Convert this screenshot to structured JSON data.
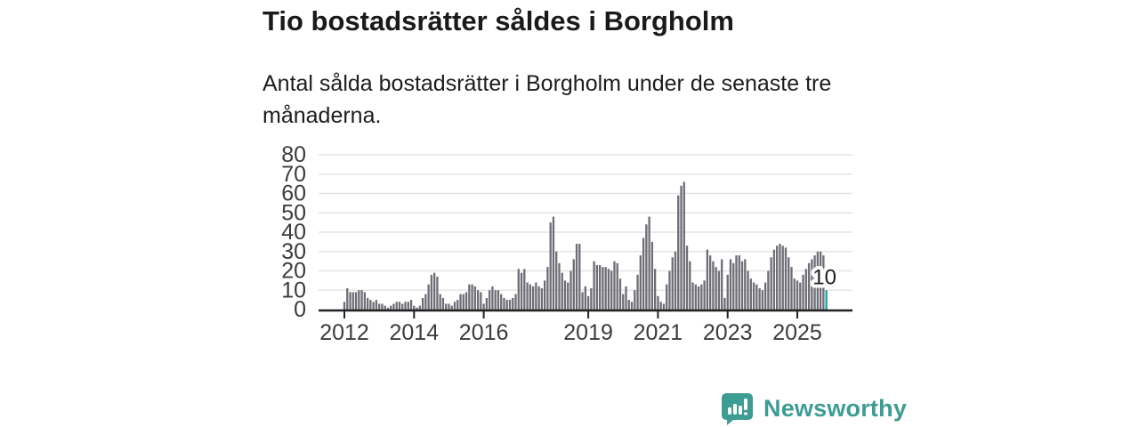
{
  "header": {
    "title": "Tio bostadsrätter såldes i Borgholm",
    "subtitle": "Antal sålda bostadsrätter i Borgholm under de senaste tre månaderna."
  },
  "chart_data": {
    "type": "bar",
    "title": "Tio bostadsrätter såldes i Borgholm",
    "x_start": "2012-01",
    "x_end": "2025-11",
    "x_unit": "month",
    "ylim": [
      0,
      80
    ],
    "grid": true,
    "yticks": [
      0,
      10,
      20,
      30,
      40,
      50,
      60,
      70,
      80
    ],
    "xticks": [
      {
        "label": "2012",
        "month_index": 0
      },
      {
        "label": "2014",
        "month_index": 24
      },
      {
        "label": "2016",
        "month_index": 48
      },
      {
        "label": "2019",
        "month_index": 84
      },
      {
        "label": "2021",
        "month_index": 108
      },
      {
        "label": "2023",
        "month_index": 132
      },
      {
        "label": "2025",
        "month_index": 156
      }
    ],
    "values": [
      4,
      11,
      9,
      9,
      9,
      10,
      10,
      9,
      6,
      5,
      4,
      5,
      3,
      3,
      2,
      1,
      2,
      3,
      4,
      4,
      3,
      4,
      4,
      5,
      2,
      1,
      2,
      6,
      8,
      13,
      18,
      19,
      17,
      8,
      6,
      3,
      3,
      2,
      4,
      5,
      8,
      8,
      9,
      13,
      13,
      12,
      10,
      9,
      3,
      6,
      10,
      12,
      10,
      10,
      8,
      6,
      5,
      5,
      6,
      8,
      21,
      19,
      21,
      14,
      13,
      12,
      14,
      12,
      11,
      15,
      22,
      45,
      48,
      30,
      24,
      19,
      15,
      14,
      20,
      26,
      34,
      34,
      9,
      12,
      7,
      11,
      25,
      23,
      23,
      22,
      22,
      21,
      20,
      25,
      24,
      16,
      8,
      12,
      5,
      4,
      10,
      18,
      28,
      37,
      44,
      48,
      35,
      21,
      7,
      4,
      3,
      13,
      20,
      27,
      30,
      59,
      64,
      66,
      33,
      25,
      14,
      13,
      12,
      13,
      15,
      31,
      28,
      25,
      22,
      20,
      26,
      6,
      18,
      26,
      24,
      28,
      28,
      25,
      26,
      20,
      16,
      14,
      13,
      11,
      10,
      14,
      20,
      27,
      31,
      33,
      34,
      33,
      32,
      27,
      22,
      16,
      15,
      14,
      18,
      21,
      24,
      26,
      28,
      30,
      30,
      28,
      10
    ],
    "highlight": {
      "index": 166,
      "value": 10,
      "label": "10"
    }
  },
  "colors": {
    "bar": "#6d6d76",
    "highlight_bar": "#0ba69f",
    "grid": "#e4e4e4",
    "axis": "#222222",
    "tick_label": "#3c3c3c",
    "annotation_text": "#1d1d1d",
    "brand": "#3d9c94"
  },
  "footer": {
    "brand": "Newsworthy"
  }
}
